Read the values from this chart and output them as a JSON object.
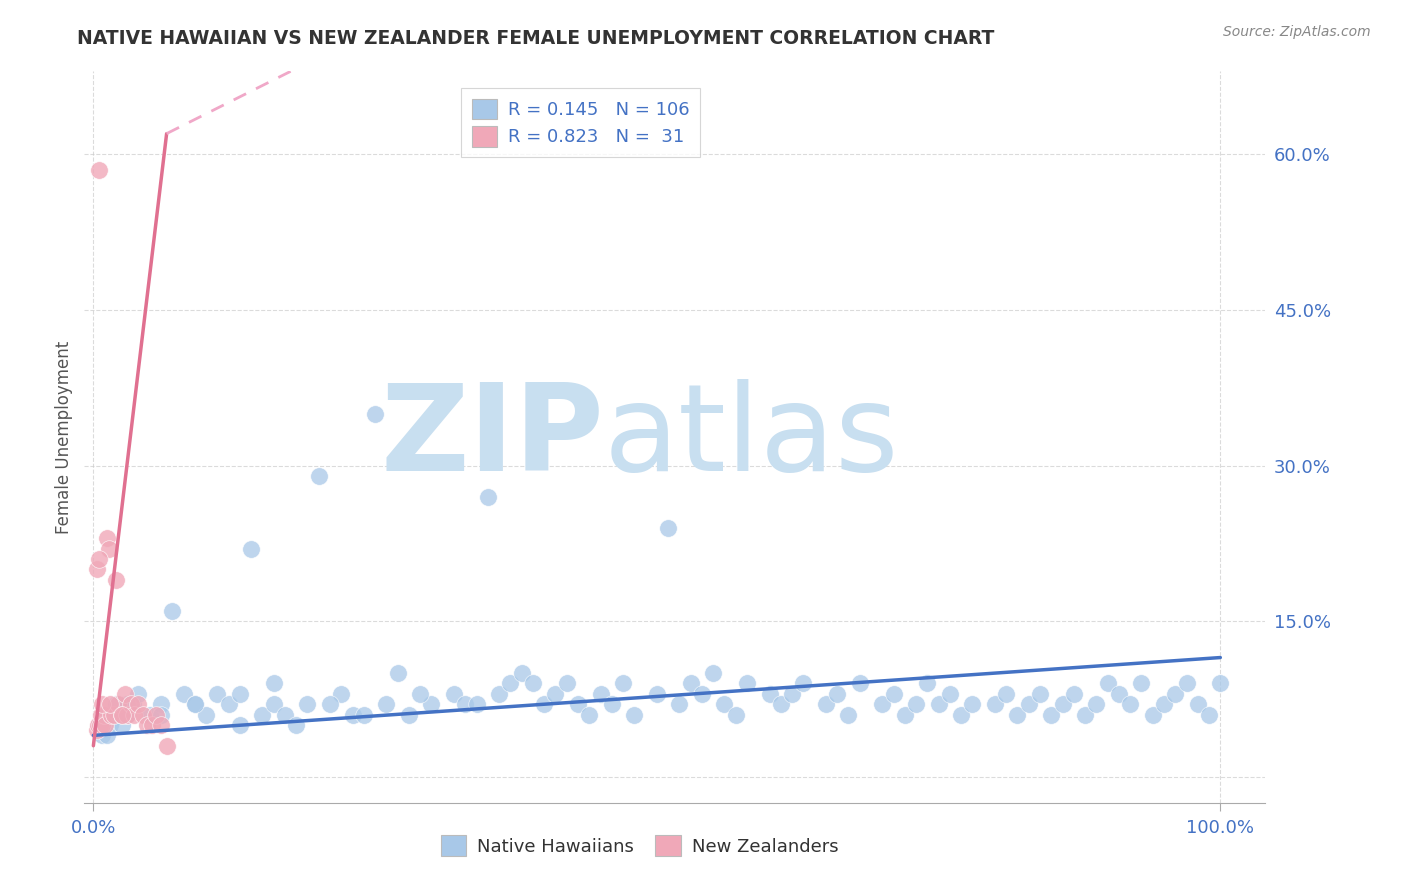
{
  "title": "NATIVE HAWAIIAN VS NEW ZEALANDER FEMALE UNEMPLOYMENT CORRELATION CHART",
  "source": "Source: ZipAtlas.com",
  "ylabel": "Female Unemployment",
  "xlim": [
    -0.008,
    1.04
  ],
  "ylim": [
    -0.025,
    0.68
  ],
  "ytick_positions": [
    0.0,
    0.15,
    0.3,
    0.45,
    0.6
  ],
  "ytick_labels": [
    "",
    "15.0%",
    "30.0%",
    "45.0%",
    "60.0%"
  ],
  "xtick_positions": [
    0.0,
    1.0
  ],
  "xtick_labels": [
    "0.0%",
    "100.0%"
  ],
  "blue_R": 0.145,
  "blue_N": 106,
  "pink_R": 0.823,
  "pink_N": 31,
  "blue_color": "#A8C8E8",
  "pink_color": "#F0A8B8",
  "blue_line_color": "#4472C4",
  "pink_line_color": "#E07090",
  "pink_line_dashed_color": "#F0A8C8",
  "blue_label": "Native Hawaiians",
  "pink_label": "New Zealanders",
  "watermark_zip": "ZIP",
  "watermark_atlas": "atlas",
  "watermark_color": "#C8DFF0",
  "background_color": "#FFFFFF",
  "grid_color": "#CCCCCC",
  "title_color": "#333333",
  "accent_color": "#4472C4",
  "blue_line_x0": 0.0,
  "blue_line_y0": 0.04,
  "blue_line_x1": 1.0,
  "blue_line_y1": 0.115,
  "pink_line_solid_x0": 0.0,
  "pink_line_solid_y0": 0.03,
  "pink_line_solid_x1": 0.065,
  "pink_line_solid_y1": 0.62,
  "pink_line_dashed_x0": 0.065,
  "pink_line_dashed_y0": 0.62,
  "pink_line_dashed_x1": 0.175,
  "pink_line_dashed_y1": 0.68,
  "blue_scatter_x": [
    0.005,
    0.008,
    0.01,
    0.012,
    0.015,
    0.018,
    0.02,
    0.025,
    0.03,
    0.035,
    0.04,
    0.05,
    0.06,
    0.07,
    0.08,
    0.09,
    0.1,
    0.11,
    0.12,
    0.13,
    0.14,
    0.15,
    0.16,
    0.17,
    0.18,
    0.19,
    0.2,
    0.22,
    0.23,
    0.25,
    0.26,
    0.27,
    0.28,
    0.3,
    0.32,
    0.33,
    0.35,
    0.36,
    0.37,
    0.38,
    0.4,
    0.41,
    0.42,
    0.43,
    0.44,
    0.45,
    0.46,
    0.47,
    0.48,
    0.5,
    0.51,
    0.52,
    0.53,
    0.54,
    0.55,
    0.56,
    0.57,
    0.58,
    0.6,
    0.61,
    0.62,
    0.63,
    0.65,
    0.66,
    0.67,
    0.68,
    0.7,
    0.71,
    0.72,
    0.73,
    0.74,
    0.75,
    0.76,
    0.77,
    0.78,
    0.8,
    0.81,
    0.82,
    0.83,
    0.84,
    0.85,
    0.86,
    0.87,
    0.88,
    0.89,
    0.9,
    0.91,
    0.92,
    0.93,
    0.94,
    0.95,
    0.96,
    0.97,
    0.98,
    0.99,
    1.0,
    0.03,
    0.06,
    0.09,
    0.13,
    0.16,
    0.21,
    0.24,
    0.29,
    0.34,
    0.39
  ],
  "blue_scatter_y": [
    0.05,
    0.04,
    0.06,
    0.04,
    0.05,
    0.06,
    0.07,
    0.05,
    0.06,
    0.07,
    0.08,
    0.06,
    0.07,
    0.16,
    0.08,
    0.07,
    0.06,
    0.08,
    0.07,
    0.05,
    0.22,
    0.06,
    0.07,
    0.06,
    0.05,
    0.07,
    0.29,
    0.08,
    0.06,
    0.35,
    0.07,
    0.1,
    0.06,
    0.07,
    0.08,
    0.07,
    0.27,
    0.08,
    0.09,
    0.1,
    0.07,
    0.08,
    0.09,
    0.07,
    0.06,
    0.08,
    0.07,
    0.09,
    0.06,
    0.08,
    0.24,
    0.07,
    0.09,
    0.08,
    0.1,
    0.07,
    0.06,
    0.09,
    0.08,
    0.07,
    0.08,
    0.09,
    0.07,
    0.08,
    0.06,
    0.09,
    0.07,
    0.08,
    0.06,
    0.07,
    0.09,
    0.07,
    0.08,
    0.06,
    0.07,
    0.07,
    0.08,
    0.06,
    0.07,
    0.08,
    0.06,
    0.07,
    0.08,
    0.06,
    0.07,
    0.09,
    0.08,
    0.07,
    0.09,
    0.06,
    0.07,
    0.08,
    0.09,
    0.07,
    0.06,
    0.09,
    0.07,
    0.06,
    0.07,
    0.08,
    0.09,
    0.07,
    0.06,
    0.08,
    0.07,
    0.09
  ],
  "pink_scatter_x": [
    0.003,
    0.004,
    0.005,
    0.006,
    0.007,
    0.008,
    0.009,
    0.01,
    0.012,
    0.014,
    0.016,
    0.018,
    0.02,
    0.022,
    0.025,
    0.028,
    0.03,
    0.033,
    0.036,
    0.04,
    0.044,
    0.048,
    0.052,
    0.056,
    0.06,
    0.065,
    0.003,
    0.005,
    0.008,
    0.015,
    0.025
  ],
  "pink_scatter_y": [
    0.045,
    0.05,
    0.585,
    0.05,
    0.06,
    0.05,
    0.06,
    0.05,
    0.23,
    0.22,
    0.06,
    0.06,
    0.19,
    0.07,
    0.06,
    0.08,
    0.06,
    0.07,
    0.06,
    0.07,
    0.06,
    0.05,
    0.05,
    0.06,
    0.05,
    0.03,
    0.2,
    0.21,
    0.07,
    0.07,
    0.06
  ]
}
